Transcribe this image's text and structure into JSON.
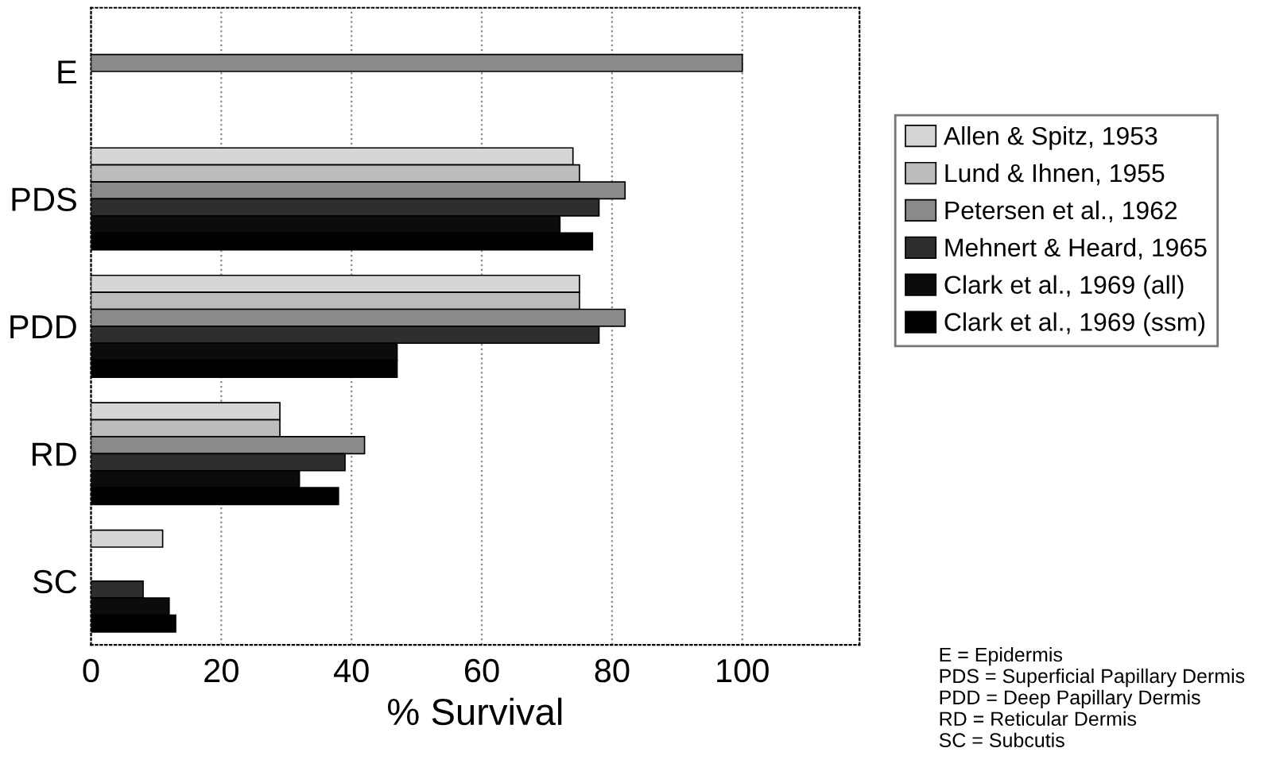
{
  "chart_data": {
    "type": "bar",
    "orientation": "horizontal",
    "xlabel": "% Survival",
    "categories": [
      "E",
      "PDS",
      "PDD",
      "RD",
      "SC"
    ],
    "series": [
      {
        "name": "Allen & Spitz, 1953",
        "color": "#d6d6d6",
        "values": [
          null,
          74,
          75,
          29,
          11
        ]
      },
      {
        "name": "Lund & Ihnen, 1955",
        "color": "#bcbcbc",
        "values": [
          null,
          75,
          75,
          29,
          null
        ]
      },
      {
        "name": "Petersen et al., 1962",
        "color": "#8a8a8a",
        "values": [
          100,
          82,
          82,
          42,
          null
        ]
      },
      {
        "name": "Mehnert & Heard, 1965",
        "color": "#2e2e2e",
        "values": [
          null,
          78,
          78,
          39,
          8
        ]
      },
      {
        "name": "Clark et al., 1969 (all)",
        "color": "#0c0c0c",
        "values": [
          null,
          72,
          47,
          32,
          12
        ]
      },
      {
        "name": "Clark et al., 1969 (ssm)",
        "color": "#000000",
        "values": [
          null,
          77,
          47,
          38,
          13
        ]
      }
    ],
    "xlim": [
      0,
      118
    ],
    "xticks": [
      0,
      20,
      40,
      60,
      80,
      100
    ],
    "grid": "x",
    "legend": "right",
    "annotations": [
      "E = Epidermis",
      "PDS = Superficial Papillary Dermis",
      "PDD = Deep Papillary Dermis",
      "RD = Reticular Dermis",
      "SC = Subcutis"
    ]
  }
}
